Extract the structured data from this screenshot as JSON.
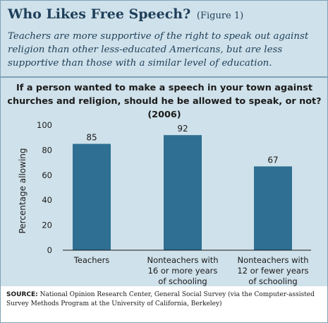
{
  "header": {
    "title": "Who Likes Free Speech?",
    "figure_label": "(Figure 1)",
    "subtitle": "Teachers are more supportive of the right to speak out against religion than other less-educated Americans, but are less supportive than those with a similar level of education."
  },
  "chart_data": {
    "type": "bar",
    "title": "If a person wanted to make a speech in your town against churches and religion, should he be allowed to speak, or not? (2006)",
    "categories": [
      [
        "Teachers"
      ],
      [
        "Nonteachers with",
        "16 or more years",
        "of schooling"
      ],
      [
        "Nonteachers with",
        "12 or fewer years",
        "of schooling"
      ]
    ],
    "values": [
      85,
      92,
      67
    ],
    "data_labels": [
      "85",
      "92",
      "67"
    ],
    "xlabel": "",
    "ylabel": "Percentage allowing",
    "ylim": [
      0,
      100
    ],
    "yticks": [
      "0",
      "20",
      "40",
      "60",
      "80",
      "100"
    ],
    "grid": false,
    "bar_color": "#2e6f93"
  },
  "source": {
    "label": "SOURCE:",
    "text": "National Opinion Research Center, General Social Survey (via the Computer-assisted Survey Methods Program at the University of California, Berkeley)"
  }
}
